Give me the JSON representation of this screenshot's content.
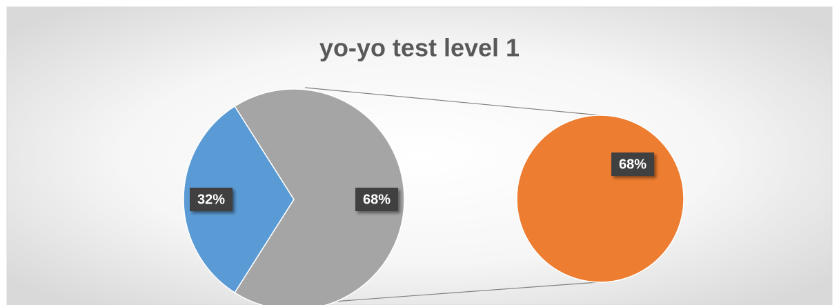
{
  "chart_data": {
    "type": "pie-of-pie",
    "title": "yo-yo test level 1",
    "values": [
      32,
      68
    ],
    "value_labels": [
      "32%",
      "68%"
    ],
    "colors": [
      "#5b9bd5",
      "#a5a5a5"
    ],
    "secondary": {
      "values": [
        68
      ],
      "value_labels": [
        "68%"
      ],
      "colors": [
        "#ed7d31"
      ]
    }
  }
}
